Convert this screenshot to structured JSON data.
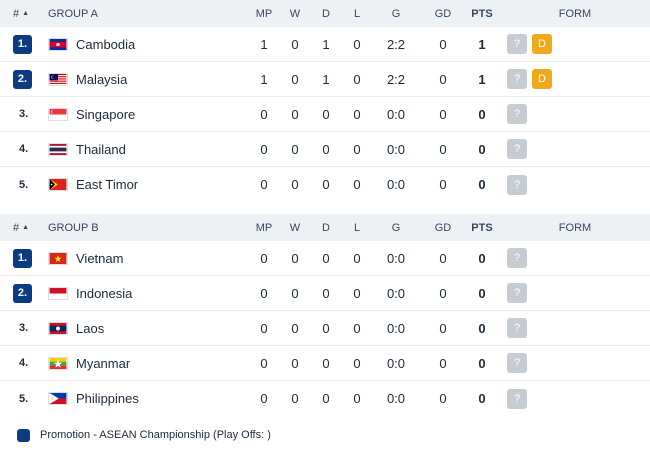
{
  "columns": {
    "rank": "#",
    "mp": "MP",
    "w": "W",
    "d": "D",
    "l": "L",
    "g": "G",
    "gd": "GD",
    "pts": "PTS",
    "form": "FORM"
  },
  "groups": [
    {
      "name": "GROUP A",
      "rows": [
        {
          "rank": "1.",
          "team": "Cambodia",
          "flag": "cambodia-flag",
          "mp": "1",
          "w": "0",
          "d": "1",
          "l": "0",
          "g": "2:2",
          "gd": "0",
          "pts": "1",
          "form": [
            "?",
            "D"
          ]
        },
        {
          "rank": "2.",
          "team": "Malaysia",
          "flag": "malaysia-flag",
          "mp": "1",
          "w": "0",
          "d": "1",
          "l": "0",
          "g": "2:2",
          "gd": "0",
          "pts": "1",
          "form": [
            "?",
            "D"
          ]
        },
        {
          "rank": "3.",
          "team": "Singapore",
          "flag": "singapore-flag",
          "mp": "0",
          "w": "0",
          "d": "0",
          "l": "0",
          "g": "0:0",
          "gd": "0",
          "pts": "0",
          "form": [
            "?"
          ]
        },
        {
          "rank": "4.",
          "team": "Thailand",
          "flag": "thailand-flag",
          "mp": "0",
          "w": "0",
          "d": "0",
          "l": "0",
          "g": "0:0",
          "gd": "0",
          "pts": "0",
          "form": [
            "?"
          ]
        },
        {
          "rank": "5.",
          "team": "East Timor",
          "flag": "east-timor-flag",
          "mp": "0",
          "w": "0",
          "d": "0",
          "l": "0",
          "g": "0:0",
          "gd": "0",
          "pts": "0",
          "form": [
            "?"
          ]
        }
      ]
    },
    {
      "name": "GROUP B",
      "rows": [
        {
          "rank": "1.",
          "team": "Vietnam",
          "flag": "vietnam-flag",
          "mp": "0",
          "w": "0",
          "d": "0",
          "l": "0",
          "g": "0:0",
          "gd": "0",
          "pts": "0",
          "form": [
            "?"
          ]
        },
        {
          "rank": "2.",
          "team": "Indonesia",
          "flag": "indonesia-flag",
          "mp": "0",
          "w": "0",
          "d": "0",
          "l": "0",
          "g": "0:0",
          "gd": "0",
          "pts": "0",
          "form": [
            "?"
          ]
        },
        {
          "rank": "3.",
          "team": "Laos",
          "flag": "laos-flag",
          "mp": "0",
          "w": "0",
          "d": "0",
          "l": "0",
          "g": "0:0",
          "gd": "0",
          "pts": "0",
          "form": [
            "?"
          ]
        },
        {
          "rank": "4.",
          "team": "Myanmar",
          "flag": "myanmar-flag",
          "mp": "0",
          "w": "0",
          "d": "0",
          "l": "0",
          "g": "0:0",
          "gd": "0",
          "pts": "0",
          "form": [
            "?"
          ]
        },
        {
          "rank": "5.",
          "team": "Philippines",
          "flag": "philippines-flag",
          "mp": "0",
          "w": "0",
          "d": "0",
          "l": "0",
          "g": "0:0",
          "gd": "0",
          "pts": "0",
          "form": [
            "?"
          ]
        }
      ]
    }
  ],
  "legend": {
    "label": "Promotion - ASEAN Championship (Play Offs: )"
  },
  "colors": {
    "promotion": "#0c3b82",
    "draw": "#f0a81c",
    "unknown": "#c7ccd2",
    "header_bg": "#eef1f4"
  }
}
